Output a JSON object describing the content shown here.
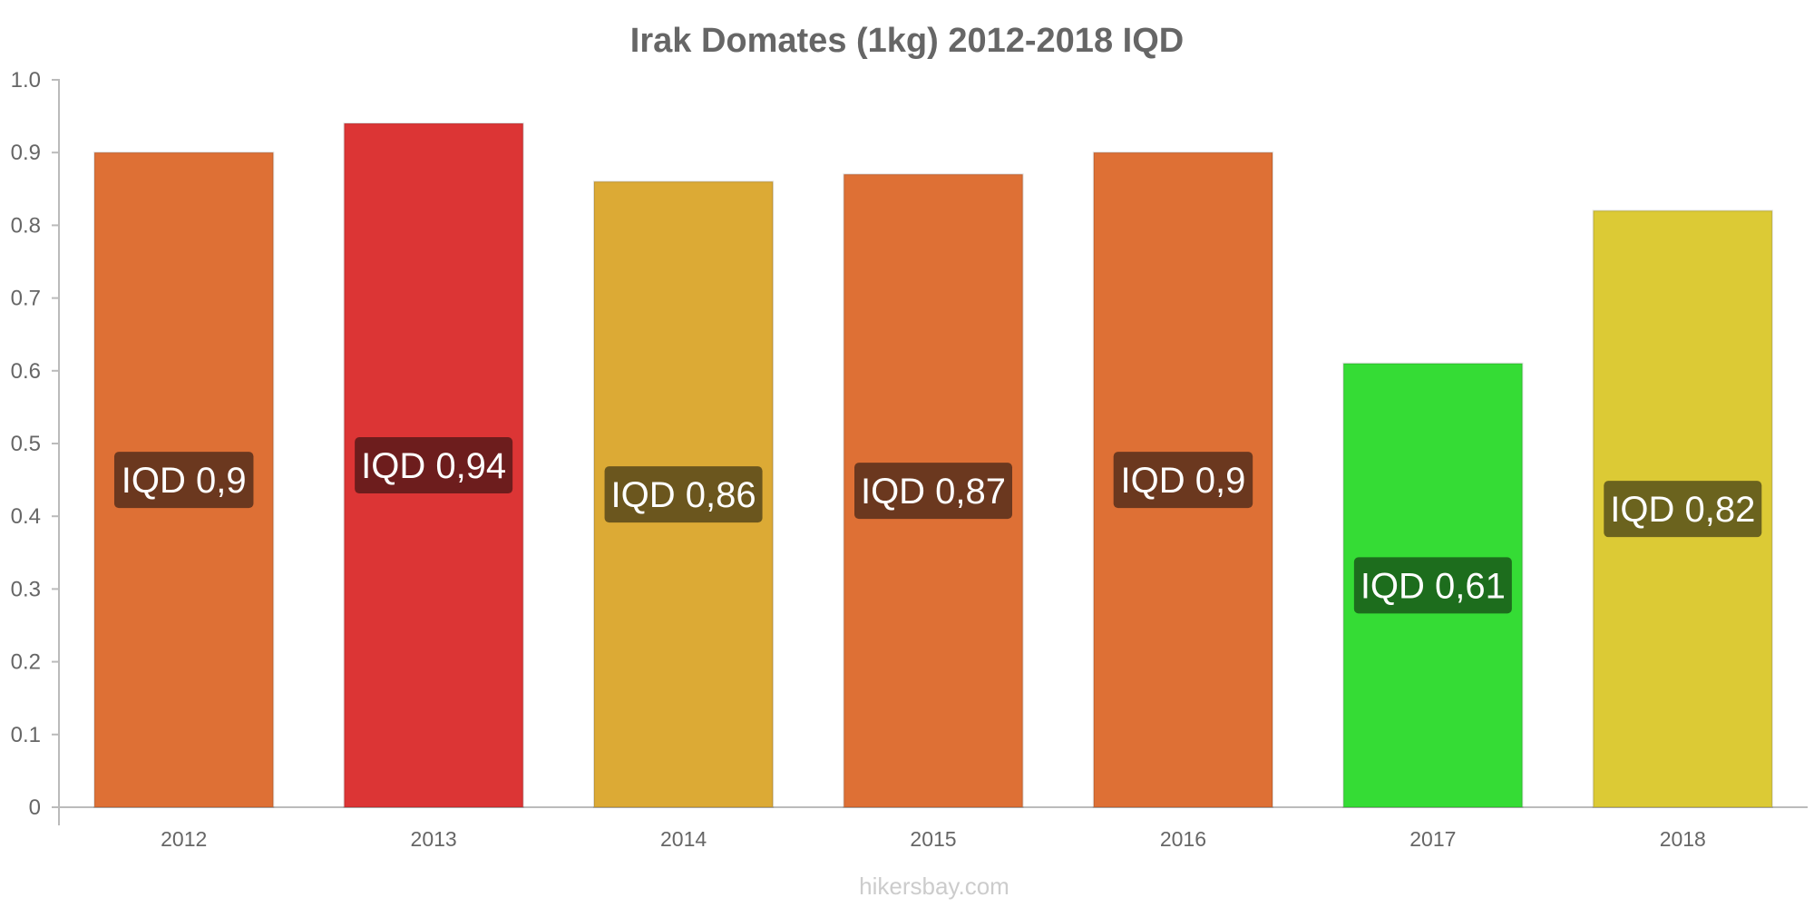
{
  "chart_data": {
    "type": "bar",
    "title": "Irak Domates (1kg) 2012-2018 IQD",
    "xlabel": "",
    "ylabel": "",
    "categories": [
      "2012",
      "2013",
      "2014",
      "2015",
      "2016",
      "2017",
      "2018"
    ],
    "values": [
      0.9,
      0.94,
      0.86,
      0.87,
      0.9,
      0.61,
      0.82
    ],
    "data_labels": [
      "IQD 0,9",
      "IQD 0,94",
      "IQD 0,86",
      "IQD 0,87",
      "IQD 0,9",
      "IQD 0,61",
      "IQD 0,82"
    ],
    "ylim": [
      0,
      1.0
    ],
    "yticks": [
      "0",
      "0.1",
      "0.2",
      "0.3",
      "0.4",
      "0.5",
      "0.6",
      "0.7",
      "0.8",
      "0.9",
      "1.0"
    ],
    "grid": false,
    "legend": "none",
    "bar_colors": [
      "#de7035",
      "#dc3535",
      "#dcaa35",
      "#de7035",
      "#de7035",
      "#35dc35",
      "#dcca35"
    ],
    "label_box_colors": [
      "#6b381f",
      "#6d1d1d",
      "#6b561e",
      "#6b381f",
      "#6b381f",
      "#1d6d1d",
      "#6b631e"
    ]
  },
  "footer": "hikersbay.com"
}
